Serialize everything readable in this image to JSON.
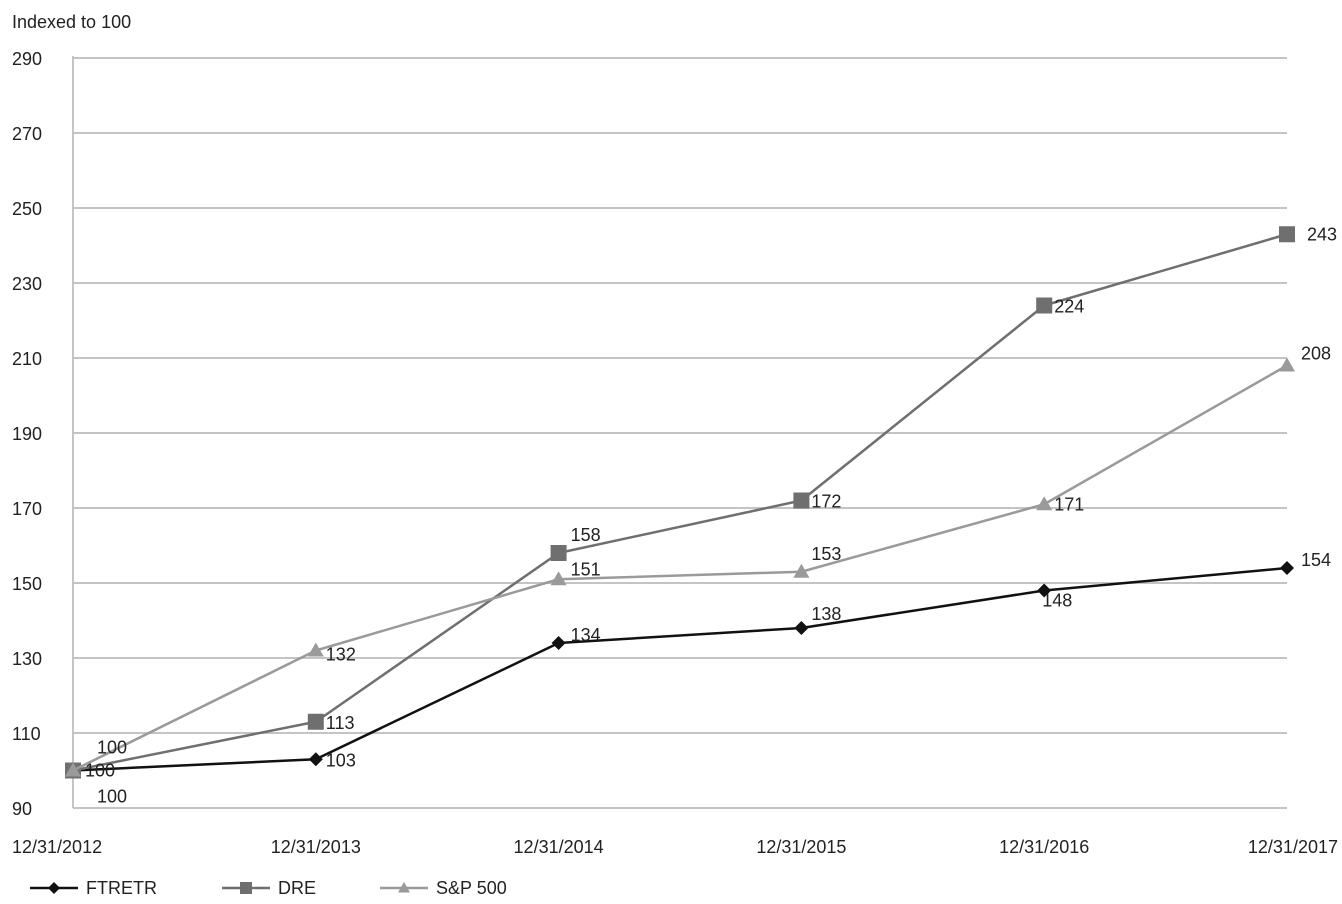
{
  "chart_data": {
    "type": "line",
    "ylabel": "Indexed to 100",
    "categories": [
      "12/31/2012",
      "12/31/2013",
      "12/31/2014",
      "12/31/2015",
      "12/31/2016",
      "12/31/2017"
    ],
    "yticks": [
      90,
      110,
      130,
      150,
      170,
      190,
      210,
      230,
      250,
      270,
      290
    ],
    "ylim": [
      90,
      290
    ],
    "grid": true,
    "legend_position": "bottom-left",
    "series": [
      {
        "name": "FTRETR",
        "marker": "diamond",
        "color": "#111111",
        "values": [
          100,
          103,
          134,
          138,
          148,
          154
        ],
        "labels": [
          "100",
          "103",
          "134",
          "138",
          "148",
          "154"
        ]
      },
      {
        "name": "DRE",
        "marker": "square",
        "color": "#6f6f6f",
        "values": [
          100,
          113,
          158,
          172,
          224,
          243
        ],
        "labels": [
          "100",
          "113",
          "158",
          "172",
          "224",
          "243"
        ]
      },
      {
        "name": "S&P 500",
        "marker": "triangle",
        "color": "#9a9a9a",
        "values": [
          100,
          132,
          151,
          153,
          171,
          208
        ],
        "labels": [
          "100",
          "132",
          "151",
          "153",
          "171",
          "208"
        ]
      }
    ]
  }
}
